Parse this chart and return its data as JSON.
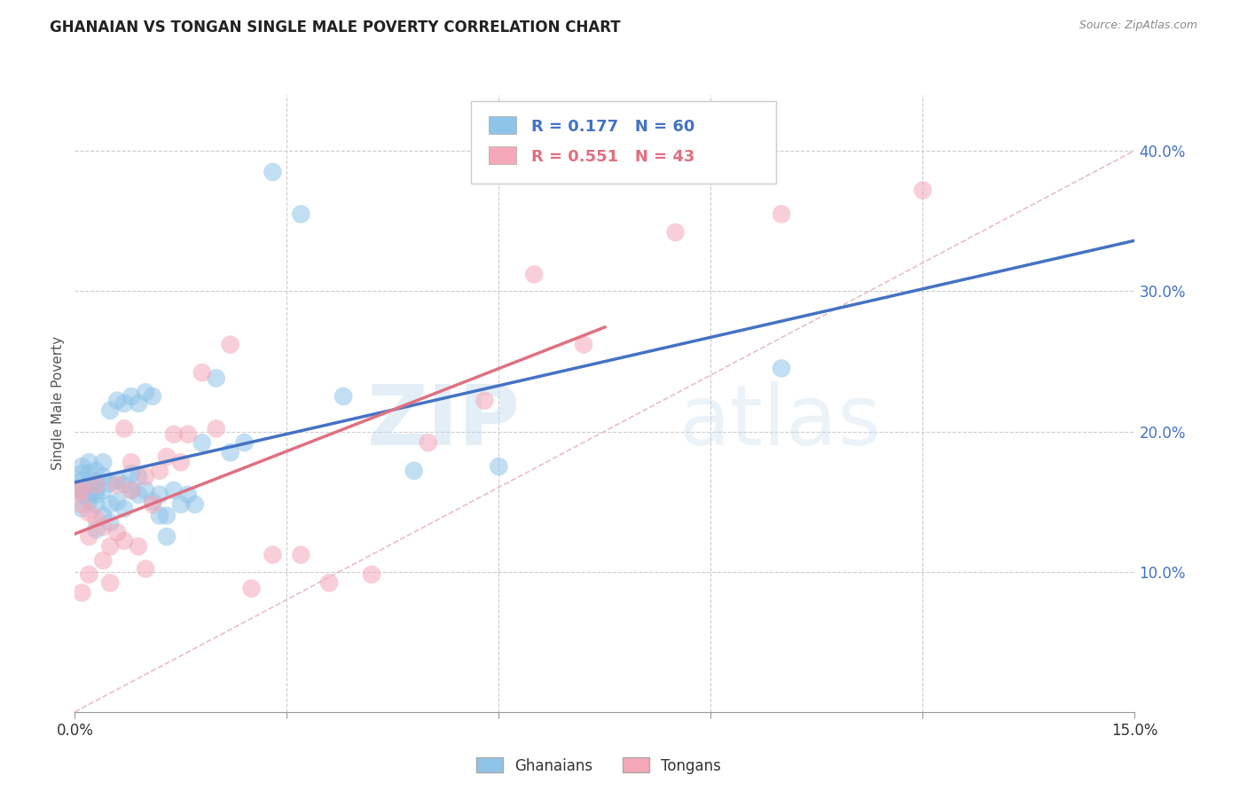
{
  "title": "GHANAIAN VS TONGAN SINGLE MALE POVERTY CORRELATION CHART",
  "source": "Source: ZipAtlas.com",
  "ylabel": "Single Male Poverty",
  "x_min": 0.0,
  "x_max": 0.15,
  "y_min": 0.0,
  "y_max": 0.44,
  "x_ticks": [
    0.0,
    0.03,
    0.06,
    0.09,
    0.12,
    0.15
  ],
  "x_tick_labels": [
    "0.0%",
    "",
    "",
    "",
    "",
    "15.0%"
  ],
  "y_ticks_right": [
    0.1,
    0.2,
    0.3,
    0.4
  ],
  "y_tick_labels_right": [
    "10.0%",
    "20.0%",
    "30.0%",
    "40.0%"
  ],
  "legend_R_blue": "0.177",
  "legend_N_blue": "60",
  "legend_R_pink": "0.551",
  "legend_N_pink": "43",
  "color_blue": "#8EC4E8",
  "color_pink": "#F4A8B8",
  "color_blue_line": "#4472C4",
  "color_pink_line": "#E07080",
  "color_diag": "#E0B0B8",
  "color_grid": "#CCCCCC",
  "watermark_zip": "ZIP",
  "watermark_atlas": "atlas",
  "ghanaian_x": [
    0.0005,
    0.001,
    0.001,
    0.001,
    0.001,
    0.001,
    0.001,
    0.002,
    0.002,
    0.002,
    0.002,
    0.002,
    0.003,
    0.003,
    0.003,
    0.003,
    0.003,
    0.003,
    0.004,
    0.004,
    0.004,
    0.004,
    0.005,
    0.005,
    0.005,
    0.005,
    0.006,
    0.006,
    0.006,
    0.007,
    0.007,
    0.007,
    0.008,
    0.008,
    0.008,
    0.009,
    0.009,
    0.009,
    0.01,
    0.01,
    0.011,
    0.011,
    0.012,
    0.012,
    0.013,
    0.013,
    0.014,
    0.015,
    0.016,
    0.017,
    0.018,
    0.02,
    0.022,
    0.024,
    0.028,
    0.032,
    0.038,
    0.048,
    0.06,
    0.1
  ],
  "ghanaian_y": [
    0.16,
    0.155,
    0.165,
    0.17,
    0.175,
    0.145,
    0.158,
    0.15,
    0.163,
    0.17,
    0.178,
    0.155,
    0.148,
    0.158,
    0.165,
    0.172,
    0.13,
    0.155,
    0.14,
    0.158,
    0.168,
    0.178,
    0.135,
    0.148,
    0.163,
    0.215,
    0.15,
    0.165,
    0.222,
    0.145,
    0.162,
    0.22,
    0.158,
    0.17,
    0.225,
    0.155,
    0.22,
    0.168,
    0.158,
    0.228,
    0.15,
    0.225,
    0.14,
    0.155,
    0.125,
    0.14,
    0.158,
    0.148,
    0.155,
    0.148,
    0.192,
    0.238,
    0.185,
    0.192,
    0.385,
    0.355,
    0.225,
    0.172,
    0.175,
    0.245
  ],
  "tongan_x": [
    0.0005,
    0.001,
    0.001,
    0.001,
    0.002,
    0.002,
    0.002,
    0.003,
    0.003,
    0.004,
    0.004,
    0.005,
    0.005,
    0.006,
    0.006,
    0.007,
    0.007,
    0.008,
    0.008,
    0.009,
    0.01,
    0.01,
    0.011,
    0.012,
    0.013,
    0.014,
    0.015,
    0.016,
    0.018,
    0.02,
    0.022,
    0.025,
    0.028,
    0.032,
    0.036,
    0.042,
    0.05,
    0.058,
    0.065,
    0.072,
    0.085,
    0.1,
    0.12
  ],
  "tongan_y": [
    0.158,
    0.148,
    0.158,
    0.085,
    0.142,
    0.125,
    0.098,
    0.138,
    0.162,
    0.108,
    0.132,
    0.092,
    0.118,
    0.128,
    0.162,
    0.122,
    0.202,
    0.178,
    0.158,
    0.118,
    0.102,
    0.168,
    0.148,
    0.172,
    0.182,
    0.198,
    0.178,
    0.198,
    0.242,
    0.202,
    0.262,
    0.088,
    0.112,
    0.112,
    0.092,
    0.098,
    0.192,
    0.222,
    0.312,
    0.262,
    0.342,
    0.355,
    0.372
  ]
}
